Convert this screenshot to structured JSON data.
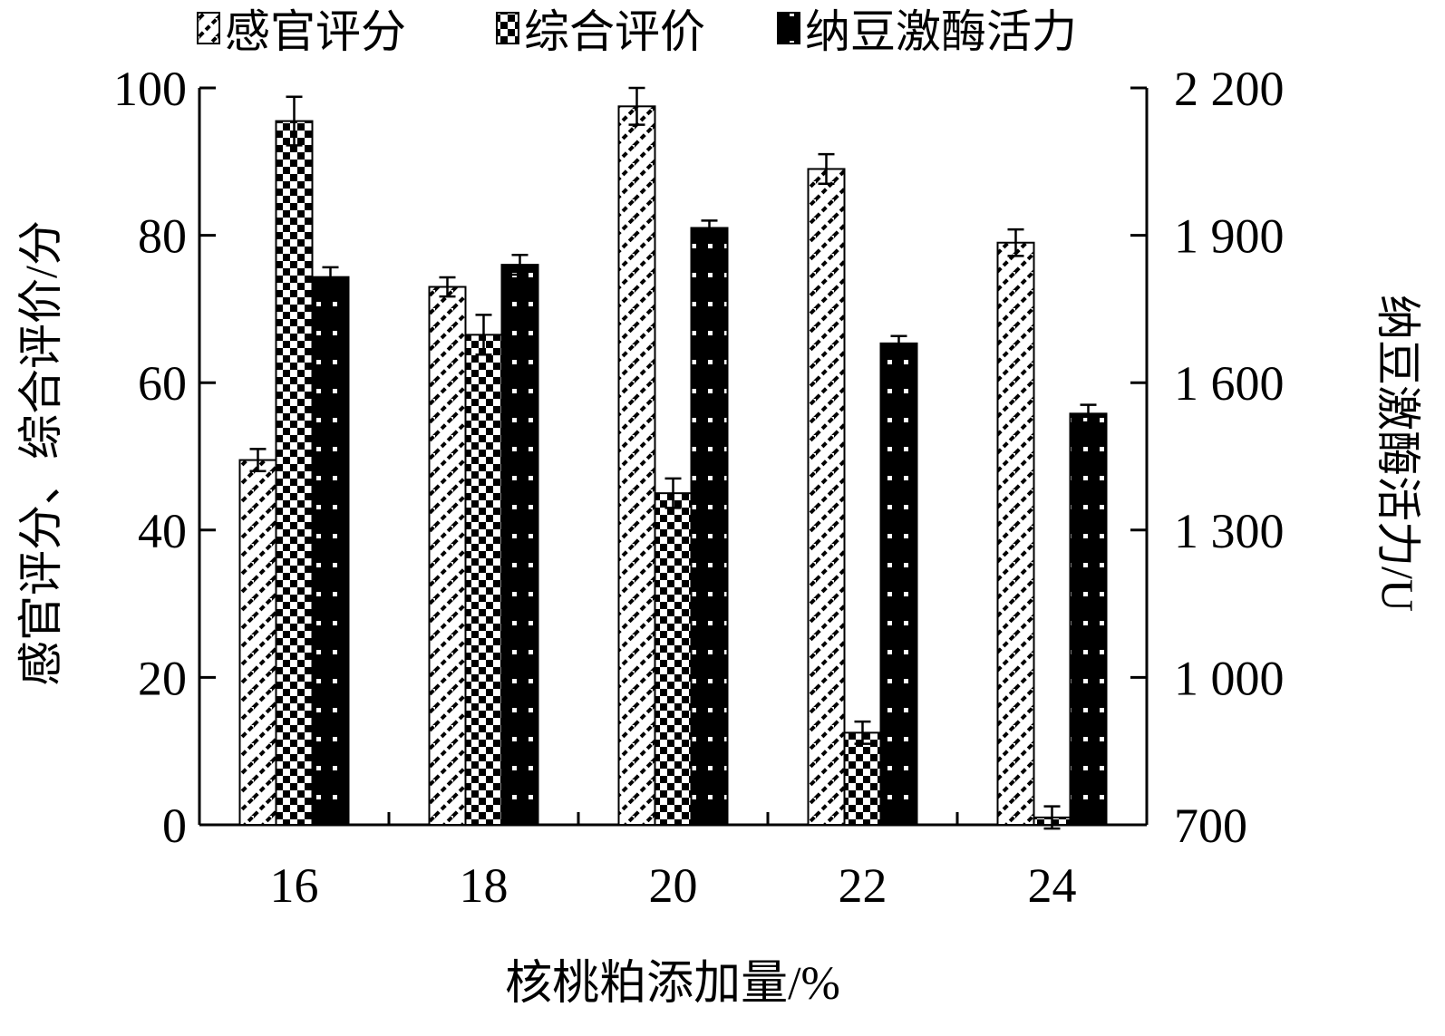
{
  "chart_data": {
    "type": "bar",
    "x_label": "核桃粕添加量/%",
    "y_left_label": "感官评分、综合评价/分",
    "y_right_label": "纳豆激酶活力/U",
    "categories": [
      "16",
      "18",
      "20",
      "22",
      "24"
    ],
    "y_left_ticks": [
      "0",
      "20",
      "40",
      "60",
      "80",
      "100"
    ],
    "y_right_ticks": [
      "700",
      "1 000",
      "1 300",
      "1 600",
      "1 900",
      "2 200"
    ],
    "y_left_range": [
      0,
      100
    ],
    "y_right_range": [
      700,
      2200
    ],
    "legend_position": "top",
    "series": [
      {
        "name": "感官评分",
        "axis": "left",
        "pattern": "diagonal",
        "values": [
          49.5,
          73,
          97.5,
          89,
          79
        ],
        "errors": [
          1.5,
          1.3,
          2.5,
          2.0,
          1.8
        ]
      },
      {
        "name": "综合评价",
        "axis": "left",
        "pattern": "checker",
        "values": [
          95.5,
          66.5,
          45,
          12.5,
          1
        ],
        "errors": [
          3.3,
          2.7,
          2.0,
          1.5,
          1.5
        ]
      },
      {
        "name": "纳豆激酶活力",
        "axis": "right",
        "pattern": "dots",
        "values": [
          1815,
          1840,
          1915,
          1680,
          1537
        ],
        "errors": [
          20,
          20,
          15,
          15,
          18
        ]
      }
    ]
  }
}
